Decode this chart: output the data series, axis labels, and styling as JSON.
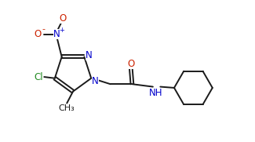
{
  "background_color": "#ffffff",
  "bond_color": "#1a1a1a",
  "n_color": "#0000cc",
  "o_color": "#cc2200",
  "cl_color": "#228B22",
  "figsize": [
    3.25,
    1.81
  ],
  "dpi": 100,
  "xlim": [
    0,
    9.5
  ],
  "ylim": [
    0,
    5.3
  ]
}
